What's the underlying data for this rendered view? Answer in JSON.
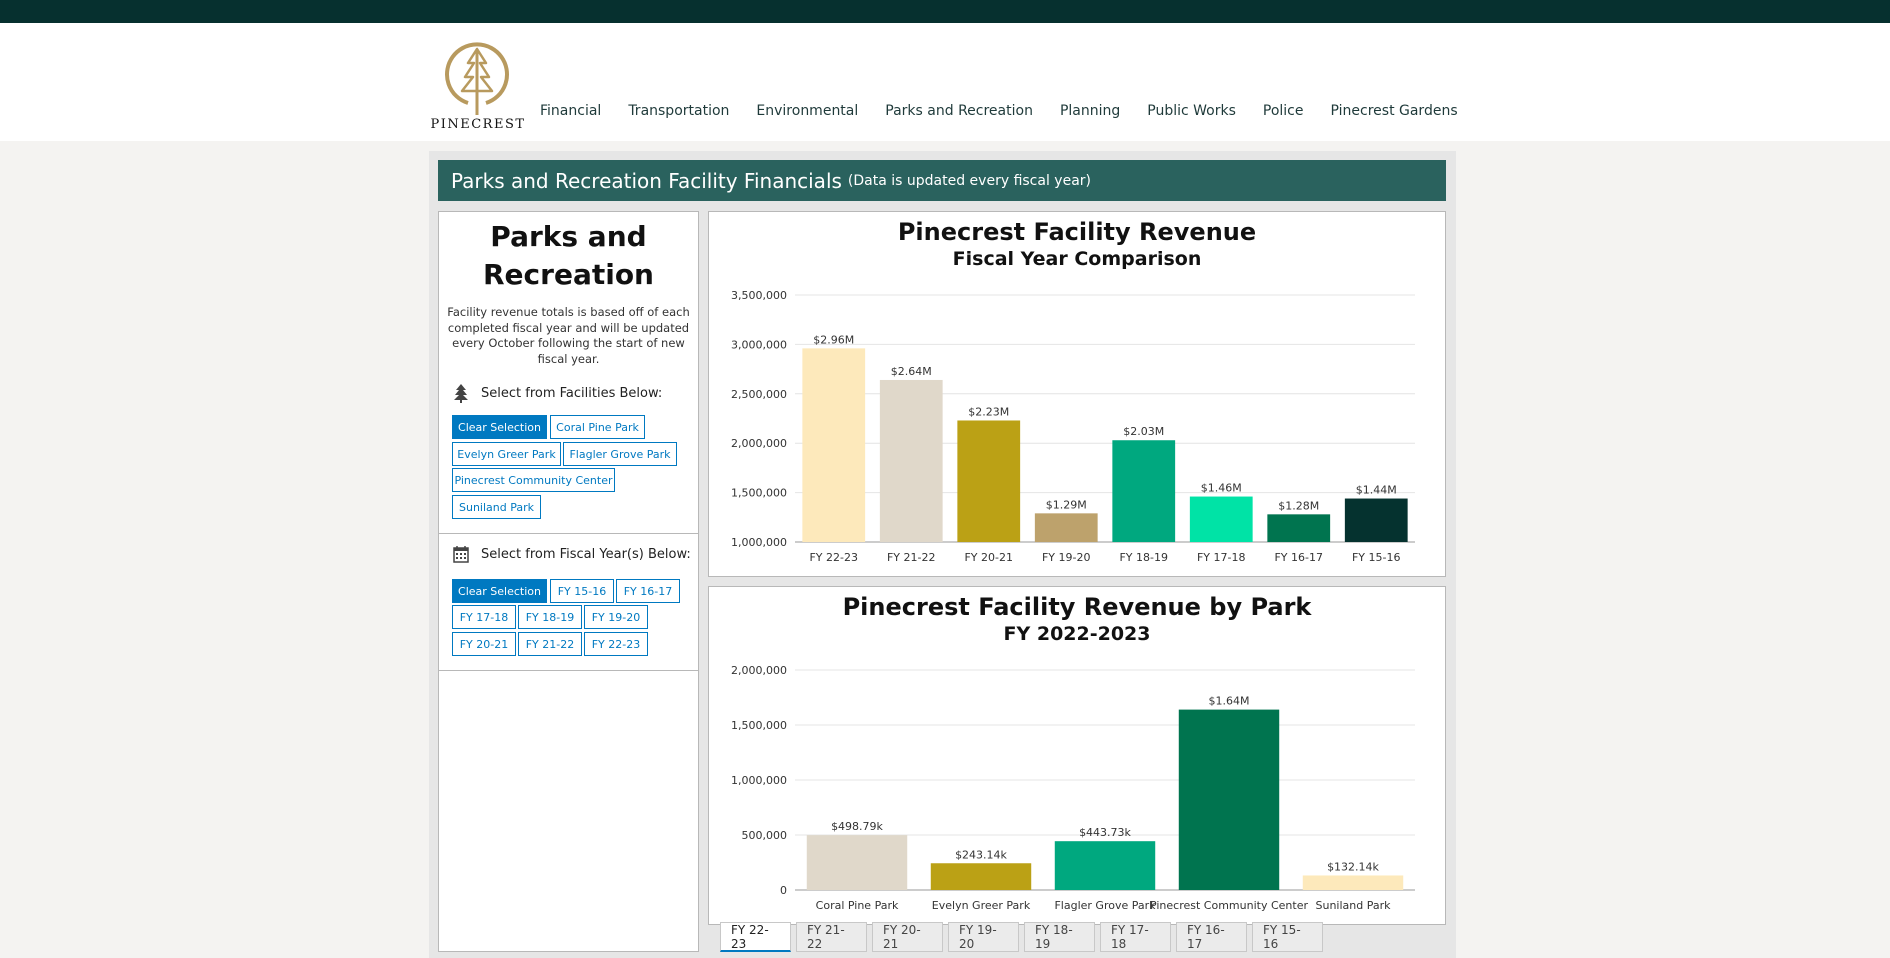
{
  "header": {
    "logo_text": "PINECREST",
    "nav": [
      "Financial",
      "Transportation",
      "Environmental",
      "Parks and Recreation",
      "Planning",
      "Public Works",
      "Police",
      "Pinecrest Gardens"
    ]
  },
  "dashboard": {
    "title": "Parks and Recreation Facility Financials",
    "subtitle": "(Data is updated every fiscal year)"
  },
  "sidebar": {
    "title": "Parks and Recreation",
    "description": "Facility revenue totals is based off of each completed fiscal year and will be updated every  October  following the start of new fiscal year.",
    "facilities_label": "Select from Facilities Below:",
    "facility_buttons": [
      "Clear Selection",
      "Coral Pine Park",
      "Evelyn Greer Park",
      "Flagler Grove Park",
      "Pinecrest Community Center",
      "Suniland Park"
    ],
    "years_label": "Select from Fiscal Year(s) Below:",
    "year_buttons": [
      "Clear Selection",
      "FY 15-16",
      "FY 16-17",
      "FY 17-18",
      "FY 18-19",
      "FY 19-20",
      "FY 20-21",
      "FY 21-22",
      "FY 22-23"
    ]
  },
  "tabs": [
    "FY 22-23",
    "FY 21-22",
    "FY 20-21",
    "FY 19-20",
    "FY 18-19",
    "FY 17-18",
    "FY 16-17",
    "FY 15-16"
  ],
  "chart_data": [
    {
      "type": "bar",
      "title": "Pinecrest Facility Revenue",
      "subtitle": "Fiscal Year Comparison",
      "categories": [
        "FY 22-23",
        "FY 21-22",
        "FY 20-21",
        "FY 19-20",
        "FY 18-19",
        "FY 17-18",
        "FY 16-17",
        "FY 15-16"
      ],
      "values": [
        2960000,
        2640000,
        2230000,
        1290000,
        2030000,
        1460000,
        1280000,
        1440000
      ],
      "data_labels": [
        "$2.96M",
        "$2.64M",
        "$2.23M",
        "$1.29M",
        "$2.03M",
        "$1.46M",
        "$1.28M",
        "$1.44M"
      ],
      "colors": [
        "#fde9bb",
        "#e0d8ca",
        "#bba115",
        "#bda26c",
        "#00a87f",
        "#00e3a6",
        "#00744f",
        "#05322f"
      ],
      "ylim": [
        1000000,
        3500000
      ],
      "yticks": [
        1000000,
        1500000,
        2000000,
        2500000,
        3000000,
        3500000
      ],
      "ytick_labels": [
        "1,000,000",
        "1,500,000",
        "2,000,000",
        "2,500,000",
        "3,000,000",
        "3,500,000"
      ],
      "grid": true
    },
    {
      "type": "bar",
      "title": "Pinecrest Facility Revenue by Park",
      "subtitle": "FY 2022-2023",
      "categories": [
        "Coral Pine Park",
        "Evelyn Greer Park",
        "Flagler Grove Park",
        "Pinecrest Community Center",
        "Suniland Park"
      ],
      "values": [
        498790,
        243140,
        443730,
        1640000,
        132140
      ],
      "data_labels": [
        "$498.79k",
        "$243.14k",
        "$443.73k",
        "$1.64M",
        "$132.14k"
      ],
      "colors": [
        "#e0d8ca",
        "#bba115",
        "#00a87f",
        "#00744f",
        "#fde9bb"
      ],
      "ylim": [
        0,
        2000000
      ],
      "yticks": [
        0,
        500000,
        1000000,
        1500000,
        2000000
      ],
      "ytick_labels": [
        "0",
        "500,000",
        "1,000,000",
        "1,500,000",
        "2,000,000"
      ],
      "grid": true
    }
  ]
}
